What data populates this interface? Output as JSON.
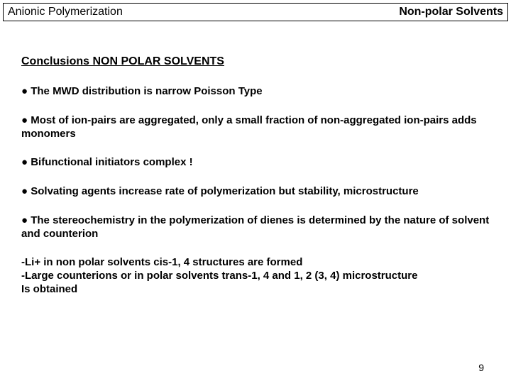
{
  "header": {
    "left": "Anionic Polymerization",
    "right": "Non-polar Solvents"
  },
  "section_title": "Conclusions NON POLAR SOLVENTS",
  "bullets": [
    "● The MWD distribution is narrow Poisson Type",
    "● Most of ion-pairs are aggregated, only a small fraction of non-aggregated ion-pairs adds monomers",
    "● Bifunctional initiators complex !",
    "● Solvating agents increase rate of polymerization but stability, microstructure",
    "● The stereochemistry in the polymerization of dienes is determined by the nature of solvent and counterion"
  ],
  "sublines": [
    "-Li+ in non polar solvents cis-1, 4 structures are formed",
    "-Large counterions or in polar solvents trans-1, 4 and 1, 2 (3, 4) microstructure",
    "Is obtained"
  ],
  "page_number": "9",
  "colors": {
    "background": "#ffffff",
    "text": "#000000",
    "border": "#000000"
  },
  "typography": {
    "font_family": "Arial",
    "header_fontsize_pt": 12,
    "title_fontsize_pt": 12,
    "body_fontsize_pt": 11
  }
}
